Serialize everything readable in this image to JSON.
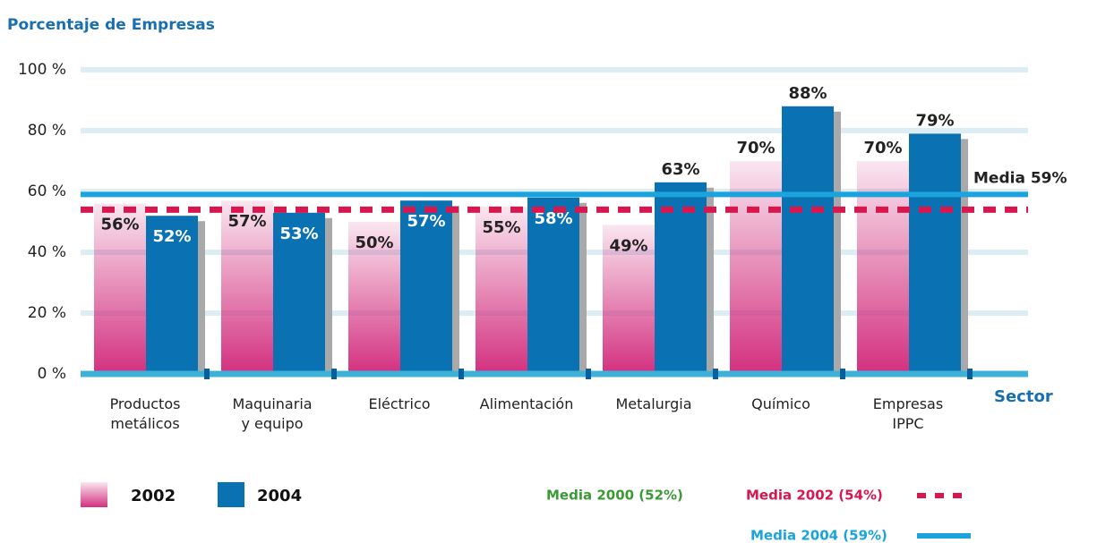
{
  "chart_data": {
    "type": "bar",
    "title": "Porcentaje de Empresas",
    "x_label": "Sector",
    "categories": [
      "Productos\nmetálicos",
      "Maquinaria\ny equipo",
      "Eléctrico",
      "Alimentación",
      "Metalurgia",
      "Químico",
      "Empresas\nIPPC"
    ],
    "series": [
      {
        "name": "2002",
        "color": "#d3307f",
        "values": [
          56,
          57,
          50,
          55,
          49,
          70,
          70
        ],
        "value_labels": [
          "56%",
          "57%",
          "50%",
          "55%",
          "49%",
          "70%",
          "70%"
        ]
      },
      {
        "name": "2004",
        "color": "#0a72b2",
        "values": [
          52,
          53,
          57,
          58,
          63,
          88,
          79
        ],
        "value_labels": [
          "52%",
          "53%",
          "57%",
          "58%",
          "63%",
          "88%",
          "79%"
        ]
      }
    ],
    "ylim": [
      0,
      100
    ],
    "yticks": [
      {
        "value": 0,
        "label": "0 %"
      },
      {
        "value": 20,
        "label": "20 %"
      },
      {
        "value": 40,
        "label": "40 %"
      },
      {
        "value": 60,
        "label": "60 %"
      },
      {
        "value": 80,
        "label": "80 %"
      },
      {
        "value": 100,
        "label": "100 %"
      }
    ],
    "grid": true,
    "reference_lines": [
      {
        "name": "Media 2000 (52%)",
        "color": "#3a9a35"
      },
      {
        "name": "Media 2002 (54%)",
        "value": 54,
        "color": "#d8174f",
        "style": "dashed"
      },
      {
        "name": "Media 2004 (59%)",
        "value": 59,
        "color": "#1aa3dc",
        "style": "solid",
        "label": "Media 59%"
      }
    ]
  }
}
